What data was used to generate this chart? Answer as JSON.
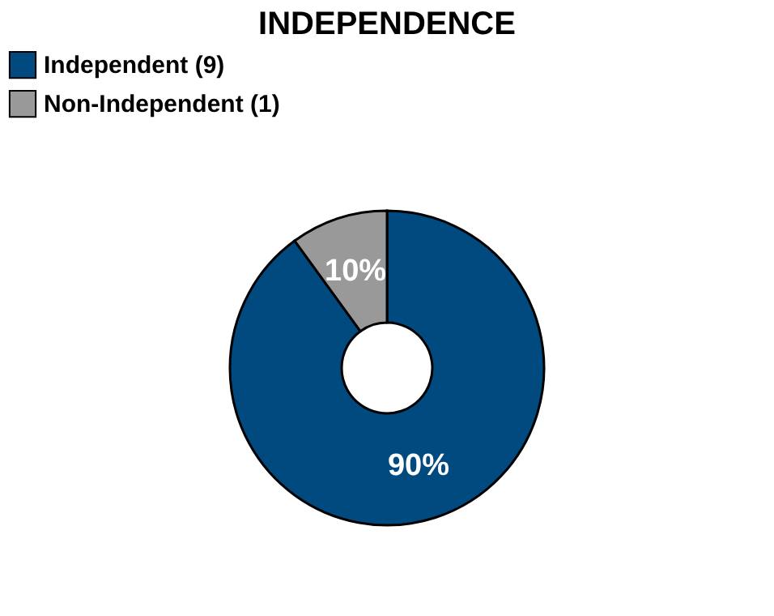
{
  "chart_data": {
    "type": "donut",
    "title": "INDEPENDENCE",
    "categories": [
      "Independent (9)",
      "Non-Independent (1)"
    ],
    "values": [
      90,
      10
    ],
    "colors": [
      "#004a80",
      "#999999"
    ],
    "value_labels": [
      "90%",
      "10%"
    ],
    "legend": "top"
  }
}
